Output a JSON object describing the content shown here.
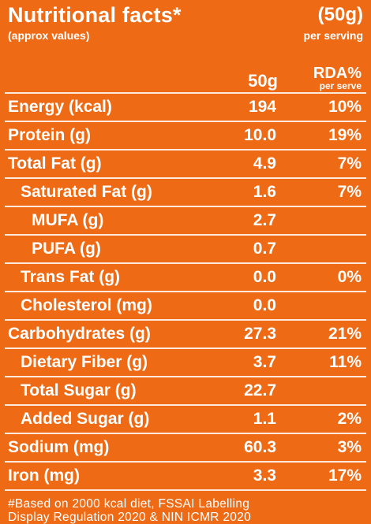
{
  "header": {
    "title": "Nutritional facts*",
    "subtitle": "(approx values)",
    "serving_size": "(50g)",
    "serving_label": "per serving"
  },
  "columns": {
    "amount": "50g",
    "rda": "RDA%",
    "rda_sub": "per serve"
  },
  "rows": [
    {
      "name": "Energy (kcal)",
      "value": "194",
      "rda": "10%"
    },
    {
      "name": "Protein (g)",
      "value": "10.0",
      "rda": "19%"
    },
    {
      "name": "Total Fat (g)",
      "value": "4.9",
      "rda": "7%"
    },
    {
      "name": "Saturated Fat (g)",
      "value": "1.6",
      "rda": "7%"
    },
    {
      "name": "MUFA (g)",
      "value": "2.7",
      "rda": ""
    },
    {
      "name": "PUFA (g)",
      "value": "0.7",
      "rda": ""
    },
    {
      "name": "Trans Fat (g)",
      "value": "0.0",
      "rda": "0%"
    },
    {
      "name": "Cholesterol (mg)",
      "value": "0.0",
      "rda": ""
    },
    {
      "name": "Carbohydrates (g)",
      "value": "27.3",
      "rda": "21%"
    },
    {
      "name": "Dietary Fiber (g)",
      "value": "3.7",
      "rda": "11%"
    },
    {
      "name": "Total Sugar (g)",
      "value": "22.7",
      "rda": ""
    },
    {
      "name": "Added Sugar (g)",
      "value": "1.1",
      "rda": "2%"
    },
    {
      "name": "Sodium (mg)",
      "value": "60.3",
      "rda": "3%"
    },
    {
      "name": "Iron (mg)",
      "value": "3.3",
      "rda": "17%"
    }
  ],
  "footer": {
    "line1": "#Based on 2000 kcal diet, FSSAI Labelling",
    "line2": "Display Regulation 2020 & NIN ICMR 2020"
  },
  "colors": {
    "background": "#ef6a14",
    "text": "#ffffff"
  }
}
